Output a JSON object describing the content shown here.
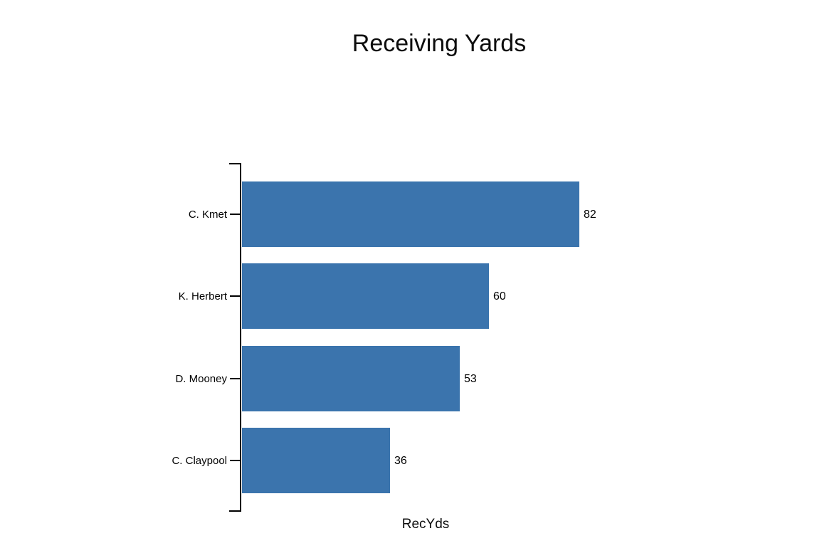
{
  "page": {
    "background_color": "#ffffff"
  },
  "chart_data": {
    "type": "bar",
    "orientation": "horizontal",
    "title": "Receiving Yards",
    "xlabel": "RecYds",
    "ylabel": "",
    "categories": [
      "C. Kmet",
      "K. Herbert",
      "D. Mooney",
      "C. Claypool"
    ],
    "values": [
      82,
      60,
      53,
      36
    ],
    "value_labels": [
      "82",
      "60",
      "53",
      "36"
    ],
    "xlim": [
      0,
      82
    ],
    "bar_color": "#3b74ad",
    "axis_color": "#000000",
    "text_color": "#000000",
    "grid": false,
    "legend": "none"
  }
}
